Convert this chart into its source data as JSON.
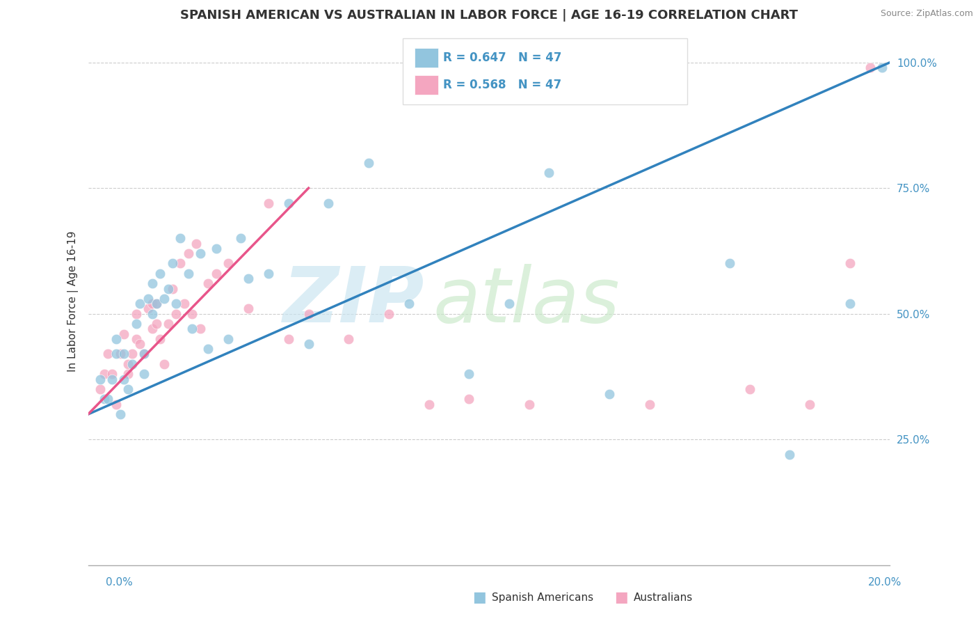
{
  "title": "SPANISH AMERICAN VS AUSTRALIAN IN LABOR FORCE | AGE 16-19 CORRELATION CHART",
  "source": "Source: ZipAtlas.com",
  "ylabel": "In Labor Force | Age 16-19",
  "legend_label1": "Spanish Americans",
  "legend_label2": "Australians",
  "r1": "0.647",
  "r2": "0.568",
  "n1": "47",
  "n2": "47",
  "blue_color": "#92c5de",
  "pink_color": "#f4a6c0",
  "blue_line_color": "#3182bd",
  "pink_line_color": "#e8558a",
  "axis_label_color": "#4393c3",
  "text_color": "#333333",
  "source_color": "#888888",
  "xmin": 0.0,
  "xmax": 20.0,
  "ymin": 0.0,
  "ymax": 105.0,
  "ytick_vals": [
    25,
    50,
    75,
    100
  ],
  "ytick_labels": [
    "25.0%",
    "50.0%",
    "75.0%",
    "100.0%"
  ],
  "blue_x": [
    0.3,
    0.4,
    0.5,
    0.6,
    0.7,
    0.7,
    0.8,
    0.9,
    0.9,
    1.0,
    1.1,
    1.2,
    1.3,
    1.4,
    1.4,
    1.5,
    1.6,
    1.6,
    1.7,
    1.8,
    1.9,
    2.0,
    2.1,
    2.2,
    2.3,
    2.5,
    2.6,
    2.8,
    3.0,
    3.2,
    3.5,
    3.8,
    4.0,
    4.5,
    5.0,
    5.5,
    6.0,
    7.0,
    8.0,
    9.5,
    10.5,
    11.5,
    13.0,
    16.0,
    17.5,
    19.0,
    19.8
  ],
  "blue_y": [
    37,
    33,
    33,
    37,
    42,
    45,
    30,
    37,
    42,
    35,
    40,
    48,
    52,
    38,
    42,
    53,
    56,
    50,
    52,
    58,
    53,
    55,
    60,
    52,
    65,
    58,
    47,
    62,
    43,
    63,
    45,
    65,
    57,
    58,
    72,
    44,
    72,
    80,
    52,
    38,
    52,
    78,
    34,
    60,
    22,
    52,
    99
  ],
  "pink_x": [
    0.3,
    0.4,
    0.5,
    0.6,
    0.7,
    0.8,
    0.9,
    1.0,
    1.0,
    1.1,
    1.2,
    1.2,
    1.3,
    1.4,
    1.5,
    1.6,
    1.6,
    1.7,
    1.7,
    1.8,
    1.9,
    2.0,
    2.1,
    2.2,
    2.3,
    2.4,
    2.5,
    2.6,
    2.7,
    2.8,
    3.0,
    3.2,
    3.5,
    4.0,
    4.5,
    5.0,
    5.5,
    6.5,
    7.5,
    8.5,
    9.5,
    11.0,
    14.0,
    16.5,
    18.0,
    19.0,
    19.5
  ],
  "pink_y": [
    35,
    38,
    42,
    38,
    32,
    42,
    46,
    38,
    40,
    42,
    50,
    45,
    44,
    42,
    51,
    47,
    52,
    48,
    52,
    45,
    40,
    48,
    55,
    50,
    60,
    52,
    62,
    50,
    64,
    47,
    56,
    58,
    60,
    51,
    72,
    45,
    50,
    45,
    50,
    32,
    33,
    32,
    32,
    35,
    32,
    60,
    99
  ],
  "blue_line_x0": 0.0,
  "blue_line_y0": 30.0,
  "blue_line_x1": 20.0,
  "blue_line_y1": 100.0,
  "pink_line_x0": 0.0,
  "pink_line_y0": 30.0,
  "pink_line_x1": 5.5,
  "pink_line_y1": 75.0,
  "ref_line_x0": 0.0,
  "ref_line_y0": 30.0,
  "ref_line_x1": 20.0,
  "ref_line_y1": 100.0,
  "watermark_zip_color": "#c8e4f0",
  "watermark_atlas_color": "#c8e8c8"
}
